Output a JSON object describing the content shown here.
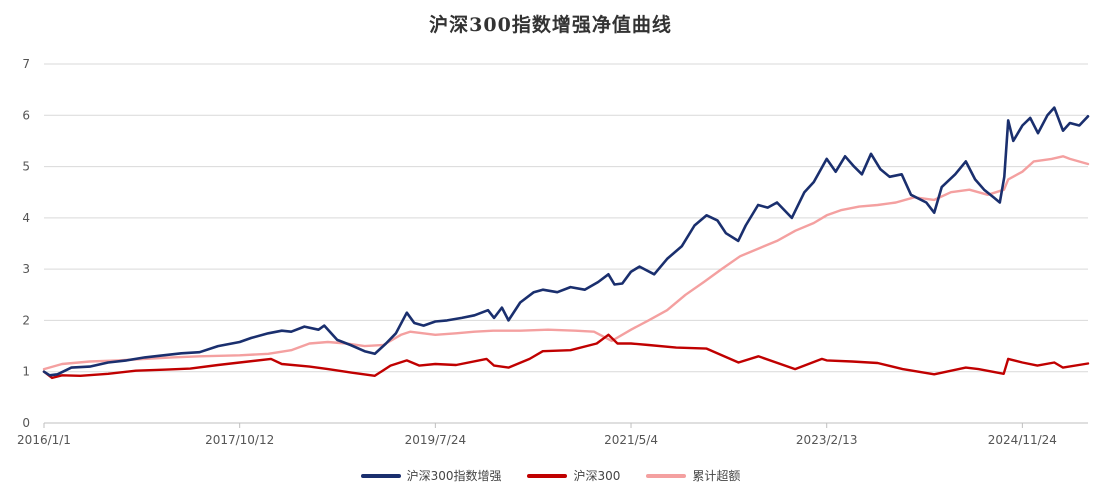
{
  "chart_data": {
    "type": "line",
    "title": "沪深300指数增强净值曲线",
    "xlabel": "",
    "ylabel": "",
    "ylim": [
      0,
      7
    ],
    "y_ticks": [
      0,
      1,
      2,
      3,
      4,
      5,
      6,
      7
    ],
    "x_ticks": [
      "2016/1/1",
      "2017/10/12",
      "2019/7/24",
      "2021/5/4",
      "2023/2/13",
      "2024/11/24"
    ],
    "x_range": [
      "2016-01-01",
      "2025-06-30"
    ],
    "grid": "horizontal",
    "legend_position": "bottom",
    "series": [
      {
        "name": "沪深300指数增强",
        "color": "#1a2f6e",
        "points": [
          [
            "2016-01-01",
            1.0
          ],
          [
            "2016-01-20",
            0.93
          ],
          [
            "2016-02-15",
            0.95
          ],
          [
            "2016-04-01",
            1.08
          ],
          [
            "2016-06-01",
            1.1
          ],
          [
            "2016-08-01",
            1.18
          ],
          [
            "2016-10-01",
            1.22
          ],
          [
            "2016-12-01",
            1.28
          ],
          [
            "2017-02-01",
            1.32
          ],
          [
            "2017-04-01",
            1.36
          ],
          [
            "2017-06-01",
            1.38
          ],
          [
            "2017-08-01",
            1.5
          ],
          [
            "2017-10-12",
            1.58
          ],
          [
            "2017-11-20",
            1.66
          ],
          [
            "2018-01-15",
            1.75
          ],
          [
            "2018-03-01",
            1.8
          ],
          [
            "2018-04-01",
            1.78
          ],
          [
            "2018-05-15",
            1.88
          ],
          [
            "2018-07-01",
            1.82
          ],
          [
            "2018-07-20",
            1.9
          ],
          [
            "2018-09-01",
            1.62
          ],
          [
            "2018-10-15",
            1.52
          ],
          [
            "2018-12-01",
            1.4
          ],
          [
            "2019-01-04",
            1.35
          ],
          [
            "2019-02-10",
            1.55
          ],
          [
            "2019-03-15",
            1.75
          ],
          [
            "2019-04-20",
            2.15
          ],
          [
            "2019-05-15",
            1.95
          ],
          [
            "2019-06-15",
            1.9
          ],
          [
            "2019-07-24",
            1.98
          ],
          [
            "2019-09-01",
            2.0
          ],
          [
            "2019-10-20",
            2.05
          ],
          [
            "2019-12-01",
            2.1
          ],
          [
            "2020-01-15",
            2.2
          ],
          [
            "2020-02-04",
            2.05
          ],
          [
            "2020-03-01",
            2.25
          ],
          [
            "2020-03-23",
            2.0
          ],
          [
            "2020-05-01",
            2.35
          ],
          [
            "2020-06-15",
            2.55
          ],
          [
            "2020-07-15",
            2.6
          ],
          [
            "2020-09-01",
            2.55
          ],
          [
            "2020-10-15",
            2.65
          ],
          [
            "2020-12-01",
            2.6
          ],
          [
            "2021-01-15",
            2.75
          ],
          [
            "2021-02-18",
            2.9
          ],
          [
            "2021-03-10",
            2.7
          ],
          [
            "2021-04-05",
            2.72
          ],
          [
            "2021-05-04",
            2.95
          ],
          [
            "2021-06-01",
            3.05
          ],
          [
            "2021-07-20",
            2.9
          ],
          [
            "2021-09-01",
            3.2
          ],
          [
            "2021-10-20",
            3.45
          ],
          [
            "2021-12-01",
            3.85
          ],
          [
            "2022-01-10",
            4.05
          ],
          [
            "2022-02-15",
            3.95
          ],
          [
            "2022-03-15",
            3.7
          ],
          [
            "2022-04-25",
            3.55
          ],
          [
            "2022-05-20",
            3.85
          ],
          [
            "2022-06-30",
            4.25
          ],
          [
            "2022-08-01",
            4.2
          ],
          [
            "2022-09-01",
            4.3
          ],
          [
            "2022-10-20",
            4.0
          ],
          [
            "2022-12-01",
            4.5
          ],
          [
            "2023-01-01",
            4.7
          ],
          [
            "2023-02-13",
            5.15
          ],
          [
            "2023-03-15",
            4.9
          ],
          [
            "2023-04-15",
            5.2
          ],
          [
            "2023-05-15",
            5.0
          ],
          [
            "2023-06-10",
            4.85
          ],
          [
            "2023-07-10",
            5.25
          ],
          [
            "2023-08-10",
            4.95
          ],
          [
            "2023-09-10",
            4.8
          ],
          [
            "2023-10-20",
            4.85
          ],
          [
            "2023-11-20",
            4.45
          ],
          [
            "2024-01-10",
            4.3
          ],
          [
            "2024-02-05",
            4.1
          ],
          [
            "2024-03-01",
            4.6
          ],
          [
            "2024-04-15",
            4.85
          ],
          [
            "2024-05-20",
            5.1
          ],
          [
            "2024-06-20",
            4.75
          ],
          [
            "2024-07-20",
            4.55
          ],
          [
            "2024-08-20",
            4.4
          ],
          [
            "2024-09-10",
            4.3
          ],
          [
            "2024-09-25",
            4.8
          ],
          [
            "2024-10-08",
            5.9
          ],
          [
            "2024-10-25",
            5.5
          ],
          [
            "2024-11-24",
            5.8
          ],
          [
            "2024-12-20",
            5.95
          ],
          [
            "2025-01-15",
            5.65
          ],
          [
            "2025-02-15",
            6.0
          ],
          [
            "2025-03-10",
            6.15
          ],
          [
            "2025-04-08",
            5.7
          ],
          [
            "2025-05-01",
            5.85
          ],
          [
            "2025-06-01",
            5.8
          ],
          [
            "2025-06-30",
            5.98
          ]
        ]
      },
      {
        "name": "沪深300",
        "color": "#c00000",
        "points": [
          [
            "2016-01-01",
            1.0
          ],
          [
            "2016-01-28",
            0.88
          ],
          [
            "2016-03-01",
            0.93
          ],
          [
            "2016-05-01",
            0.92
          ],
          [
            "2016-08-01",
            0.96
          ],
          [
            "2016-11-01",
            1.02
          ],
          [
            "2017-02-01",
            1.04
          ],
          [
            "2017-05-01",
            1.06
          ],
          [
            "2017-08-01",
            1.13
          ],
          [
            "2017-10-12",
            1.18
          ],
          [
            "2018-01-24",
            1.25
          ],
          [
            "2018-03-01",
            1.15
          ],
          [
            "2018-06-01",
            1.1
          ],
          [
            "2018-08-01",
            1.05
          ],
          [
            "2018-10-20",
            0.98
          ],
          [
            "2019-01-04",
            0.92
          ],
          [
            "2019-02-25",
            1.12
          ],
          [
            "2019-04-20",
            1.22
          ],
          [
            "2019-06-01",
            1.12
          ],
          [
            "2019-07-24",
            1.15
          ],
          [
            "2019-10-01",
            1.13
          ],
          [
            "2020-01-10",
            1.25
          ],
          [
            "2020-02-04",
            1.12
          ],
          [
            "2020-03-23",
            1.08
          ],
          [
            "2020-06-01",
            1.25
          ],
          [
            "2020-07-15",
            1.4
          ],
          [
            "2020-10-15",
            1.42
          ],
          [
            "2021-01-10",
            1.55
          ],
          [
            "2021-02-18",
            1.72
          ],
          [
            "2021-03-20",
            1.55
          ],
          [
            "2021-05-04",
            1.55
          ],
          [
            "2021-07-01",
            1.52
          ],
          [
            "2021-10-01",
            1.47
          ],
          [
            "2022-01-10",
            1.45
          ],
          [
            "2022-04-26",
            1.18
          ],
          [
            "2022-07-01",
            1.3
          ],
          [
            "2022-10-31",
            1.05
          ],
          [
            "2023-01-28",
            1.25
          ],
          [
            "2023-02-13",
            1.22
          ],
          [
            "2023-05-08",
            1.2
          ],
          [
            "2023-08-01",
            1.17
          ],
          [
            "2023-10-23",
            1.05
          ],
          [
            "2024-02-05",
            0.95
          ],
          [
            "2024-05-20",
            1.08
          ],
          [
            "2024-07-01",
            1.05
          ],
          [
            "2024-09-23",
            0.96
          ],
          [
            "2024-10-08",
            1.25
          ],
          [
            "2024-11-24",
            1.18
          ],
          [
            "2025-01-13",
            1.12
          ],
          [
            "2025-03-10",
            1.18
          ],
          [
            "2025-04-08",
            1.08
          ],
          [
            "2025-06-30",
            1.16
          ]
        ]
      },
      {
        "name": "累计超额",
        "color": "#f4a0a0",
        "points": [
          [
            "2016-01-01",
            1.05
          ],
          [
            "2016-03-01",
            1.15
          ],
          [
            "2016-06-01",
            1.2
          ],
          [
            "2016-09-01",
            1.22
          ],
          [
            "2016-12-01",
            1.25
          ],
          [
            "2017-03-01",
            1.28
          ],
          [
            "2017-06-01",
            1.3
          ],
          [
            "2017-10-12",
            1.32
          ],
          [
            "2018-01-15",
            1.35
          ],
          [
            "2018-04-01",
            1.42
          ],
          [
            "2018-06-01",
            1.55
          ],
          [
            "2018-08-01",
            1.58
          ],
          [
            "2018-10-01",
            1.55
          ],
          [
            "2018-12-01",
            1.5
          ],
          [
            "2019-02-01",
            1.52
          ],
          [
            "2019-04-01",
            1.72
          ],
          [
            "2019-05-01",
            1.78
          ],
          [
            "2019-07-24",
            1.72
          ],
          [
            "2019-10-01",
            1.75
          ],
          [
            "2019-12-01",
            1.78
          ],
          [
            "2020-02-01",
            1.8
          ],
          [
            "2020-05-01",
            1.8
          ],
          [
            "2020-08-01",
            1.82
          ],
          [
            "2020-11-01",
            1.8
          ],
          [
            "2021-01-01",
            1.78
          ],
          [
            "2021-03-01",
            1.6
          ],
          [
            "2021-05-04",
            1.82
          ],
          [
            "2021-07-01",
            2.0
          ],
          [
            "2021-09-01",
            2.2
          ],
          [
            "2021-11-01",
            2.5
          ],
          [
            "2022-01-01",
            2.75
          ],
          [
            "2022-03-01",
            3.0
          ],
          [
            "2022-05-01",
            3.25
          ],
          [
            "2022-07-01",
            3.4
          ],
          [
            "2022-09-01",
            3.55
          ],
          [
            "2022-11-01",
            3.75
          ],
          [
            "2023-01-01",
            3.9
          ],
          [
            "2023-02-13",
            4.05
          ],
          [
            "2023-04-01",
            4.15
          ],
          [
            "2023-06-01",
            4.22
          ],
          [
            "2023-08-01",
            4.25
          ],
          [
            "2023-10-01",
            4.3
          ],
          [
            "2023-12-01",
            4.4
          ],
          [
            "2024-02-05",
            4.35
          ],
          [
            "2024-04-01",
            4.5
          ],
          [
            "2024-06-01",
            4.55
          ],
          [
            "2024-08-01",
            4.45
          ],
          [
            "2024-09-24",
            4.55
          ],
          [
            "2024-10-08",
            4.75
          ],
          [
            "2024-11-24",
            4.9
          ],
          [
            "2025-01-01",
            5.1
          ],
          [
            "2025-03-01",
            5.15
          ],
          [
            "2025-04-08",
            5.2
          ],
          [
            "2025-05-01",
            5.15
          ],
          [
            "2025-06-30",
            5.05
          ]
        ]
      }
    ]
  }
}
